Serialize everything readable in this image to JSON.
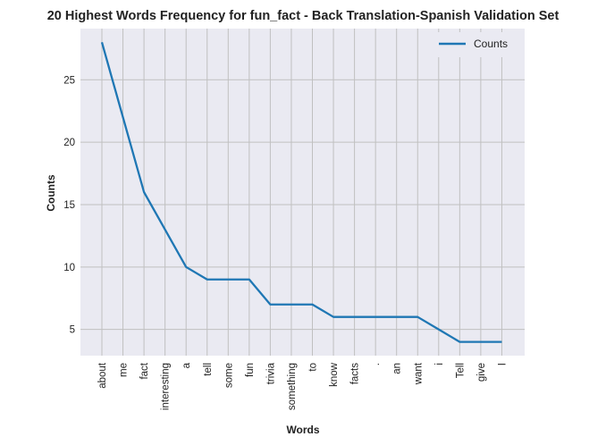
{
  "chart_data": {
    "type": "line",
    "title": "20 Highest Words Frequency for fun_fact - Back Translation-Spanish Validation Set",
    "xlabel": "Words",
    "ylabel": "Counts",
    "categories": [
      "about",
      "me",
      "fact",
      "interesting",
      "a",
      "tell",
      "some",
      "fun",
      "trivia",
      "something",
      "to",
      "know",
      "facts",
      ".",
      "an",
      "want",
      "i",
      "Tell",
      "give",
      "I"
    ],
    "series": [
      {
        "name": "Counts",
        "color": "#1f77b4",
        "values": [
          28,
          22,
          16,
          13,
          10,
          9,
          9,
          9,
          7,
          7,
          7,
          6,
          6,
          6,
          6,
          6,
          5,
          4,
          4,
          4
        ]
      }
    ],
    "yticks": [
      5,
      10,
      15,
      20,
      25
    ],
    "ylim": [
      2.9,
      29.1
    ],
    "grid": true,
    "legend": "top-right",
    "background": "#eaeaf2",
    "grid_color": "#c0c0c0"
  }
}
